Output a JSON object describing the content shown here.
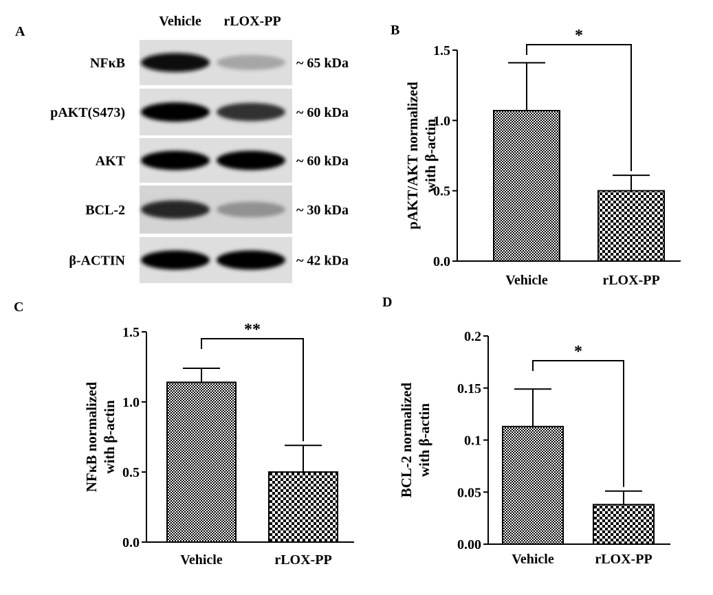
{
  "panels": {
    "A": {
      "letter": "A"
    },
    "B": {
      "letter": "B"
    },
    "C": {
      "letter": "C"
    },
    "D": {
      "letter": "D"
    }
  },
  "blot": {
    "columns": [
      "Vehicle",
      "rLOX-PP"
    ],
    "rows": [
      {
        "label": "NFκB",
        "size": "~ 65 kDa",
        "intensity": [
          0.95,
          0.25
        ]
      },
      {
        "label": "pAKT(S473)",
        "size": "~ 60 kDa",
        "intensity": [
          1.0,
          0.8
        ]
      },
      {
        "label": "AKT",
        "size": "~ 60 kDa",
        "intensity": [
          1.0,
          1.0
        ]
      },
      {
        "label": "BCL-2",
        "size": "~ 30 kDa",
        "intensity": [
          0.85,
          0.35
        ]
      },
      {
        "label": "β-ACTIN",
        "size": "~ 42 kDa",
        "intensity": [
          1.0,
          1.0
        ]
      }
    ]
  },
  "chart_data": [
    {
      "panel": "B",
      "type": "bar",
      "categories": [
        "Vehicle",
        "rLOX-PP"
      ],
      "values": [
        1.07,
        0.5
      ],
      "errors": [
        0.34,
        0.11
      ],
      "ylabel_lines": [
        "pAKT/AKT normalized",
        "with β-actin"
      ],
      "ylim": [
        0,
        1.5
      ],
      "yticks": [
        "0.0",
        "0.5",
        "1.0",
        "1.5"
      ],
      "ytick_values": [
        0,
        0.5,
        1.0,
        1.5
      ],
      "significance": "*",
      "grid": false
    },
    {
      "panel": "C",
      "type": "bar",
      "categories": [
        "Vehicle",
        "rLOX-PP"
      ],
      "values": [
        1.14,
        0.5
      ],
      "errors": [
        0.1,
        0.19
      ],
      "ylabel_lines": [
        "NFκB normalized",
        "with β-actin"
      ],
      "ylim": [
        0,
        1.5
      ],
      "yticks": [
        "0.0",
        "0.5",
        "1.0",
        "1.5"
      ],
      "ytick_values": [
        0,
        0.5,
        1.0,
        1.5
      ],
      "significance": "**",
      "grid": false
    },
    {
      "panel": "D",
      "type": "bar",
      "categories": [
        "Vehicle",
        "rLOX-PP"
      ],
      "values": [
        0.113,
        0.038
      ],
      "errors": [
        0.036,
        0.013
      ],
      "ylabel_lines": [
        "BCL-2 normalized",
        "with β-actin"
      ],
      "ylim": [
        0,
        0.2
      ],
      "yticks": [
        "0.00",
        "0.05",
        "0.1",
        "0.15",
        "0.2"
      ],
      "ytick_values": [
        0,
        0.05,
        0.1,
        0.15,
        0.2
      ],
      "significance": "*",
      "grid": false
    }
  ]
}
